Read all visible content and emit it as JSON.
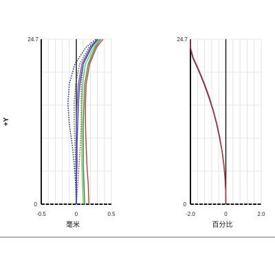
{
  "chart_data": [
    {
      "type": "line",
      "ylabel": "+Y",
      "xlabel": "毫米",
      "xlim": [
        -0.5,
        0.5
      ],
      "ylim": [
        0,
        24.7
      ],
      "x_tick_labels": [
        "-0.5",
        "0",
        "0.5"
      ],
      "y_tick_labels": [
        "0",
        "24.7"
      ],
      "grid": true,
      "series": [
        {
          "color": "#1a237e",
          "style": "dotted",
          "points": [
            [
              0.0,
              0
            ],
            [
              -0.01,
              3
            ],
            [
              -0.03,
              6
            ],
            [
              -0.06,
              9
            ],
            [
              -0.1,
              12
            ],
            [
              -0.12,
              15
            ],
            [
              -0.1,
              18
            ],
            [
              -0.02,
              21
            ],
            [
              0.14,
              23.5
            ],
            [
              0.28,
              24.7
            ]
          ]
        },
        {
          "color": "#2b7a2b",
          "style": "dotted",
          "points": [
            [
              0.0,
              0
            ],
            [
              0.0,
              3
            ],
            [
              -0.01,
              6
            ],
            [
              -0.02,
              9
            ],
            [
              -0.03,
              12
            ],
            [
              -0.03,
              15
            ],
            [
              -0.01,
              18
            ],
            [
              0.05,
              21
            ],
            [
              0.18,
              23.5
            ],
            [
              0.3,
              24.7
            ]
          ]
        },
        {
          "color": "#c0392b",
          "style": "dotted",
          "points": [
            [
              0.0,
              0
            ],
            [
              0.02,
              3
            ],
            [
              0.04,
              6
            ],
            [
              0.06,
              9
            ],
            [
              0.07,
              12
            ],
            [
              0.07,
              15
            ],
            [
              0.07,
              18
            ],
            [
              0.1,
              21
            ],
            [
              0.2,
              23.5
            ],
            [
              0.31,
              24.7
            ]
          ]
        },
        {
          "color": "#8e44ad",
          "style": "solid",
          "points": [
            [
              0.0,
              0
            ],
            [
              0.0,
              3
            ],
            [
              0.0,
              6
            ],
            [
              0.0,
              9
            ],
            [
              0.0,
              12
            ],
            [
              0.01,
              15
            ],
            [
              0.03,
              18
            ],
            [
              0.08,
              21
            ],
            [
              0.2,
              23.5
            ],
            [
              0.3,
              24.7
            ]
          ]
        },
        {
          "color": "#1e4fd8",
          "style": "solid",
          "points": [
            [
              0.0,
              0
            ],
            [
              0.0,
              3
            ],
            [
              0.01,
              6
            ],
            [
              0.01,
              9
            ],
            [
              0.02,
              12
            ],
            [
              0.03,
              15
            ],
            [
              0.05,
              18
            ],
            [
              0.1,
              21
            ],
            [
              0.22,
              23.5
            ],
            [
              0.31,
              24.7
            ]
          ]
        },
        {
          "color": "#66cc33",
          "style": "solid",
          "points": [
            [
              0.1,
              0
            ],
            [
              0.09,
              3
            ],
            [
              0.08,
              6
            ],
            [
              0.08,
              9
            ],
            [
              0.08,
              12
            ],
            [
              0.08,
              15
            ],
            [
              0.09,
              18
            ],
            [
              0.13,
              21
            ],
            [
              0.25,
              23.5
            ],
            [
              0.33,
              24.7
            ]
          ]
        },
        {
          "color": "#2e8b57",
          "style": "solid",
          "points": [
            [
              0.12,
              0
            ],
            [
              0.11,
              3
            ],
            [
              0.1,
              6
            ],
            [
              0.1,
              9
            ],
            [
              0.1,
              12
            ],
            [
              0.11,
              15
            ],
            [
              0.12,
              18
            ],
            [
              0.17,
              21
            ],
            [
              0.27,
              23.5
            ],
            [
              0.35,
              24.7
            ]
          ]
        },
        {
          "color": "#c0392b",
          "style": "solid",
          "points": [
            [
              0.18,
              0
            ],
            [
              0.17,
              3
            ],
            [
              0.15,
              6
            ],
            [
              0.14,
              9
            ],
            [
              0.13,
              12
            ],
            [
              0.13,
              15
            ],
            [
              0.14,
              18
            ],
            [
              0.19,
              21
            ],
            [
              0.29,
              23.5
            ],
            [
              0.38,
              24.7
            ]
          ]
        }
      ]
    },
    {
      "type": "line",
      "xlabel": "百分比",
      "xlim": [
        -2.0,
        2.0
      ],
      "ylim": [
        0,
        24.7
      ],
      "x_tick_labels": [
        "-2.0",
        "0",
        "2.0"
      ],
      "y_tick_labels": [
        "0",
        "24.7"
      ],
      "grid": true,
      "series": [
        {
          "color": "#1a237e",
          "style": "solid",
          "points": [
            [
              0,
              0
            ],
            [
              -0.01,
              2
            ],
            [
              -0.05,
              4
            ],
            [
              -0.12,
              6
            ],
            [
              -0.22,
              8
            ],
            [
              -0.36,
              10
            ],
            [
              -0.52,
              12
            ],
            [
              -0.72,
              14
            ],
            [
              -0.96,
              16
            ],
            [
              -1.23,
              18
            ],
            [
              -1.54,
              20
            ],
            [
              -1.88,
              22
            ],
            [
              -2.0,
              23.4
            ],
            [
              -2.0,
              24.7
            ]
          ]
        },
        {
          "color": "#c0392b",
          "style": "solid",
          "points": [
            [
              0,
              0
            ],
            [
              -0.01,
              2
            ],
            [
              -0.04,
              4
            ],
            [
              -0.11,
              6
            ],
            [
              -0.21,
              8
            ],
            [
              -0.34,
              10
            ],
            [
              -0.5,
              12
            ],
            [
              -0.7,
              14
            ],
            [
              -0.93,
              16
            ],
            [
              -1.2,
              18
            ],
            [
              -1.51,
              20
            ],
            [
              -1.85,
              22
            ],
            [
              -2.0,
              23.5
            ],
            [
              -2.0,
              24.7
            ]
          ]
        }
      ]
    }
  ]
}
